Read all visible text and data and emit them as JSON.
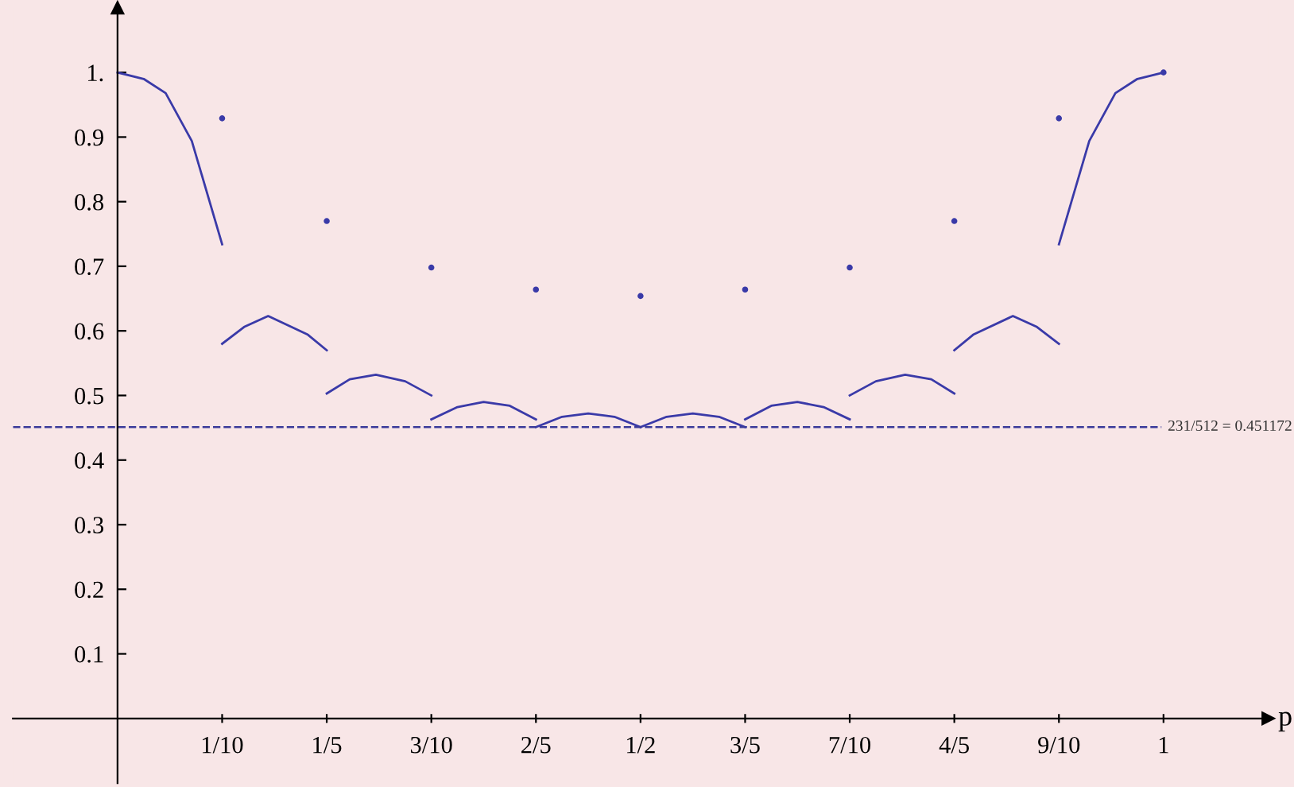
{
  "chart_data": {
    "type": "line",
    "xlabel": "p",
    "xlim": [
      -0.1,
      1.1
    ],
    "ylim": [
      -0.1,
      1.1
    ],
    "xticks": [
      {
        "value": 0.1,
        "label": "1/10"
      },
      {
        "value": 0.2,
        "label": "1/5"
      },
      {
        "value": 0.3,
        "label": "3/10"
      },
      {
        "value": 0.4,
        "label": "2/5"
      },
      {
        "value": 0.5,
        "label": "1/2"
      },
      {
        "value": 0.6,
        "label": "3/5"
      },
      {
        "value": 0.7,
        "label": "7/10"
      },
      {
        "value": 0.8,
        "label": "4/5"
      },
      {
        "value": 0.9,
        "label": "9/10"
      },
      {
        "value": 1,
        "label": "1"
      }
    ],
    "yticks": [
      0.1,
      0.2,
      0.3,
      0.4,
      0.5,
      0.6,
      0.7,
      0.8,
      0.9,
      {
        "value": 1,
        "label": "1."
      }
    ],
    "grid": false,
    "legend": false,
    "marker": "none",
    "line_style": "solid",
    "ref_lines": [
      {
        "axis": "y",
        "value": 0.451172,
        "label": "231/512 = 0.451172",
        "color": "#3a3a9a",
        "line_style": "dashed"
      }
    ],
    "series": [
      {
        "color": "#3a3aa8",
        "x": [
          0,
          0.025,
          0.046,
          0.071,
          0.1
        ],
        "values": [
          1.0,
          0.99,
          0.968,
          0.894,
          0.734
        ]
      },
      {
        "color": "#3a3aa8",
        "x": [
          0.1,
          0.121,
          0.144,
          0.182,
          0.2
        ],
        "values": [
          0.58,
          0.606,
          0.623,
          0.594,
          0.57
        ]
      },
      {
        "color": "#3a3aa8",
        "x": [
          0.2,
          0.222,
          0.247,
          0.275,
          0.3
        ],
        "values": [
          0.503,
          0.525,
          0.532,
          0.522,
          0.5
        ]
      },
      {
        "color": "#3a3aa8",
        "x": [
          0.3,
          0.325,
          0.35,
          0.375,
          0.4
        ],
        "values": [
          0.463,
          0.482,
          0.49,
          0.484,
          0.463
        ]
      },
      {
        "color": "#3a3aa8",
        "x": [
          0.4,
          0.425,
          0.45,
          0.475,
          0.5
        ],
        "values": [
          0.451,
          0.467,
          0.472,
          0.467,
          0.451
        ]
      },
      {
        "color": "#3a3aa8",
        "x": [
          0.5,
          0.525,
          0.55,
          0.575,
          0.6
        ],
        "values": [
          0.451,
          0.467,
          0.472,
          0.467,
          0.451
        ]
      },
      {
        "color": "#3a3aa8",
        "x": [
          0.6,
          0.625,
          0.65,
          0.675,
          0.7
        ],
        "values": [
          0.463,
          0.484,
          0.49,
          0.482,
          0.463
        ]
      },
      {
        "color": "#3a3aa8",
        "x": [
          0.7,
          0.725,
          0.753,
          0.778,
          0.8
        ],
        "values": [
          0.5,
          0.522,
          0.532,
          0.525,
          0.503
        ]
      },
      {
        "color": "#3a3aa8",
        "x": [
          0.8,
          0.818,
          0.856,
          0.879,
          0.9
        ],
        "values": [
          0.57,
          0.594,
          0.623,
          0.606,
          0.58
        ]
      },
      {
        "color": "#3a3aa8",
        "x": [
          0.9,
          0.929,
          0.954,
          0.975,
          1
        ],
        "values": [
          0.734,
          0.894,
          0.968,
          0.99,
          1.0
        ]
      },
      {
        "type": "scatter",
        "color": "#3a3aa8",
        "x": [
          0.1,
          0.2,
          0.3,
          0.4,
          0.5,
          0.6,
          0.7,
          0.8,
          0.9,
          1
        ],
        "values": [
          0.929,
          0.77,
          0.698,
          0.664,
          0.654,
          0.664,
          0.698,
          0.77,
          0.929,
          1.0
        ]
      }
    ]
  }
}
